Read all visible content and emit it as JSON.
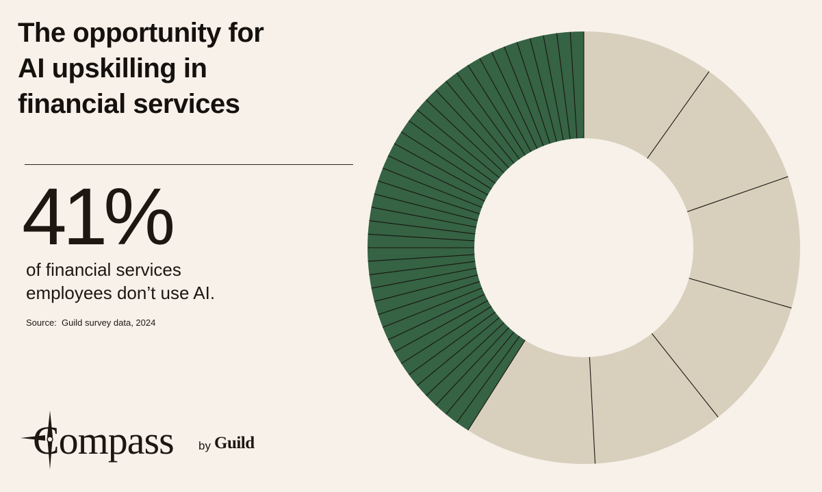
{
  "header": {
    "title_lines": [
      "The opportunity for",
      "AI upskilling in",
      "financial services"
    ]
  },
  "stat": {
    "value": "41%",
    "description_lines": [
      "of financial services",
      "employees don’t use AI."
    ],
    "source_label": "Source:",
    "source_text": "Guild survey data, 2024"
  },
  "logo": {
    "brand": "Compass",
    "by": "by",
    "company": "Guild",
    "icon": "compass-star-icon"
  },
  "colors": {
    "background": "#f7f1ea",
    "highlight": "#356344",
    "remainder": "#d8d0bd",
    "separator": "#1a1410"
  },
  "chart_data": {
    "type": "pie",
    "style": "donut",
    "categories": [
      "Don’t use AI",
      "Use AI"
    ],
    "values": [
      41,
      59
    ],
    "highlight_subdivisions": 41,
    "remainder_subdivisions": 6,
    "start": "top",
    "direction": "counter-clockwise for highlighted share",
    "title": "",
    "legend": "none"
  }
}
